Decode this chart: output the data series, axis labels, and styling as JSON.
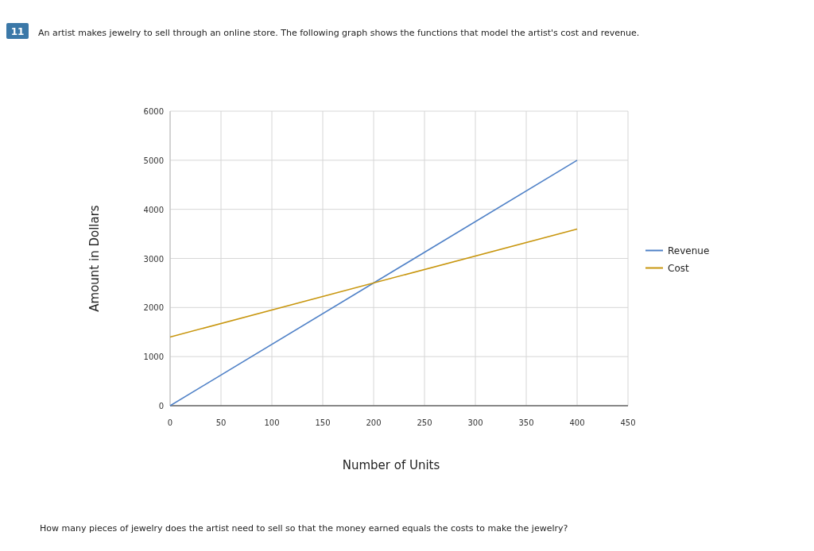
{
  "chart_data": {
    "type": "line",
    "title": "An artist makes jewelry to sell through an online store. The following graph shows the functions that model the artist's cost and revenue.",
    "xlabel": "Number of Units",
    "ylabel": "Amount in Dollars",
    "annotations": [
      "11",
      "How many pieces of jewelry does the artist need to sell so that the money earned equals the costs to make the jewelry?"
    ],
    "x": [
      0,
      400
    ],
    "series": [
      {
        "name": "Revenue",
        "color": "#4f81c7",
        "values": [
          0,
          5000
        ]
      },
      {
        "name": "Cost",
        "color": "#c8960e",
        "values": [
          1400,
          3600
        ]
      }
    ],
    "xlim": [
      0,
      450
    ],
    "xticks": [
      0,
      50,
      100,
      150,
      200,
      250,
      300,
      350,
      400,
      450
    ],
    "ylim": [
      0,
      6000
    ],
    "yticks": [
      0,
      1000,
      2000,
      3000,
      4000,
      5000,
      6000
    ],
    "grid": true,
    "legend": "right",
    "marker": "none",
    "line_style": "solid"
  }
}
